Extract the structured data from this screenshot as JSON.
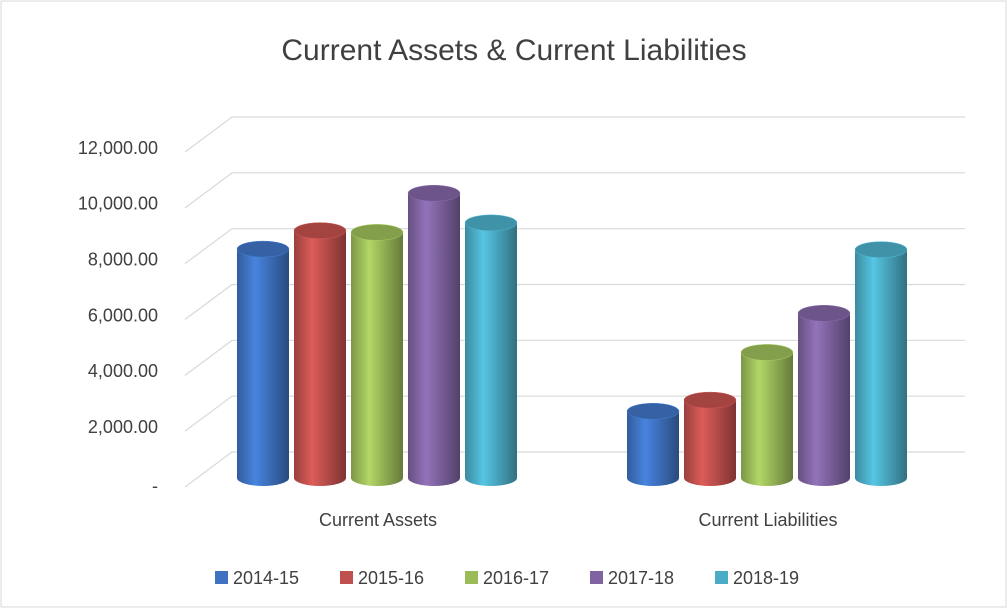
{
  "chart_data": {
    "type": "bar",
    "title": "Current Assets & Current Liabilities",
    "categories": [
      "Current Assets",
      "Current Liabilities"
    ],
    "series": [
      {
        "name": "2014-15",
        "color": "#3f73c2",
        "values": [
          8200,
          2390
        ]
      },
      {
        "name": "2015-16",
        "color": "#c0504d",
        "values": [
          8860,
          2790
        ]
      },
      {
        "name": "2016-17",
        "color": "#9bbb59",
        "values": [
          8800,
          4500
        ]
      },
      {
        "name": "2017-18",
        "color": "#8064a2",
        "values": [
          10200,
          5900
        ]
      },
      {
        "name": "2018-19",
        "color": "#4bacc6",
        "values": [
          9140,
          8180
        ]
      }
    ],
    "ylim": [
      0,
      12000
    ],
    "yticks": [
      {
        "value": 0,
        "label": "-"
      },
      {
        "value": 2000,
        "label": "2,000.00"
      },
      {
        "value": 4000,
        "label": "4,000.00"
      },
      {
        "value": 6000,
        "label": "6,000.00"
      },
      {
        "value": 8000,
        "label": "8,000.00"
      },
      {
        "value": 10000,
        "label": "10,000.00"
      },
      {
        "value": 12000,
        "label": "12,000.00"
      }
    ],
    "grid": true,
    "legend": "bottom"
  }
}
